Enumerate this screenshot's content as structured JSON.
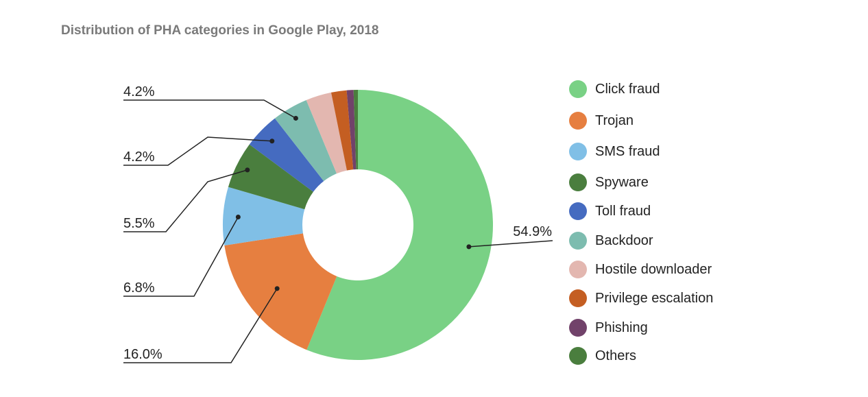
{
  "chart_data": {
    "type": "pie",
    "title": "Distribution of PHA categories in Google Play, 2018",
    "donut": true,
    "legend_position": "right",
    "slices": [
      {
        "name": "Click fraud",
        "value": 54.9,
        "color": "#79d185",
        "label": "54.9%"
      },
      {
        "name": "Trojan",
        "value": 16.0,
        "color": "#e67f40",
        "label": "16.0%"
      },
      {
        "name": "SMS fraud",
        "value": 6.8,
        "color": "#80bfe6",
        "label": "6.8%"
      },
      {
        "name": "Spyware",
        "value": 5.5,
        "color": "#4a7e3e",
        "label": "5.5%"
      },
      {
        "name": "Toll fraud",
        "value": 4.2,
        "color": "#456bc0",
        "label": "4.2%"
      },
      {
        "name": "Backdoor",
        "value": 4.2,
        "color": "#7dbcaf",
        "label": "4.2%"
      },
      {
        "name": "Hostile downloader",
        "value": 3.0,
        "color": "#e3b7b0",
        "label": ""
      },
      {
        "name": "Privilege escalation",
        "value": 1.8,
        "color": "#c45e22",
        "label": ""
      },
      {
        "name": "Phishing",
        "value": 0.8,
        "color": "#71426a",
        "label": ""
      },
      {
        "name": "Others",
        "value": 0.5,
        "color": "#4a7e3e",
        "label": ""
      }
    ]
  }
}
